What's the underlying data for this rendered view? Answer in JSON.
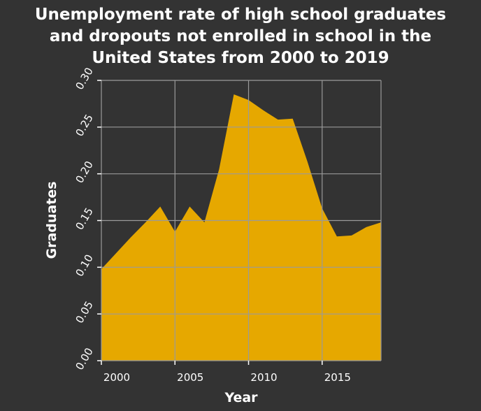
{
  "chart_data": {
    "type": "area",
    "title_lines": [
      "Unemployment rate of high school graduates",
      "and dropouts not enrolled in school in the",
      "United States from 2000 to 2019"
    ],
    "xlabel": "Year",
    "ylabel": "Graduates",
    "xlim": [
      2000,
      2019
    ],
    "ylim": [
      0,
      0.3
    ],
    "xticks": [
      2000,
      2005,
      2010,
      2015
    ],
    "xtick_labels": [
      "2000",
      "2005",
      "2010",
      "2015"
    ],
    "yticks": [
      0,
      0.05,
      0.1,
      0.15,
      0.2,
      0.25,
      0.3
    ],
    "ytick_labels": [
      "0.00",
      "0.05",
      "0.10",
      "0.15",
      "0.20",
      "0.25",
      "0.30"
    ],
    "grid": true,
    "colors": {
      "background": "#333333",
      "area": "#e6a800",
      "grid": "#9a9a9a",
      "text": "#ffffff"
    },
    "series": [
      {
        "x": [
          2000,
          2001,
          2002,
          2003,
          2004,
          2005,
          2006,
          2007,
          2008,
          2009,
          2010,
          2011,
          2012,
          2013,
          2014,
          2015,
          2016,
          2017,
          2018,
          2019
        ],
        "values": [
          0.098,
          0.115,
          0.132,
          0.148,
          0.165,
          0.138,
          0.165,
          0.148,
          0.205,
          0.285,
          0.279,
          0.268,
          0.258,
          0.259,
          0.213,
          0.163,
          0.133,
          0.134,
          0.143,
          0.148
        ]
      }
    ]
  }
}
